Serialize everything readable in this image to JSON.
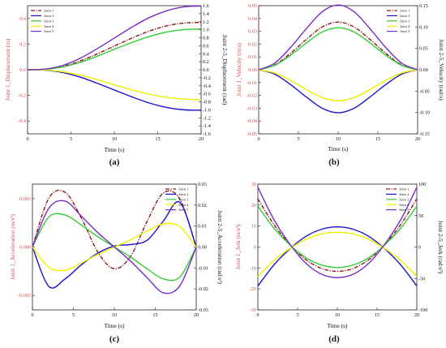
{
  "figure": {
    "panels": [
      {
        "caption": "(a)",
        "xlabel": "Time (s)",
        "ylabel_left": "Joint 1_Displacement (m)",
        "ylabel_right": "Joint 2-5_Displacement (rad)"
      },
      {
        "caption": "(b)",
        "xlabel": "Time (s)",
        "ylabel_left": "Joint 1_Velocity (m/s)",
        "ylabel_right": "Joint 2-5_Velocity (rad/s)"
      },
      {
        "caption": "(c)",
        "xlabel": "Time (s)",
        "ylabel_left": "Joint 1_Acceleration (m/s²)",
        "ylabel_right": "Joint 2-5_Acceleration (rad/s²)"
      },
      {
        "caption": "(d)",
        "xlabel": "Time (s)",
        "ylabel_left": "Joint 1_Jerk (m/s³)",
        "ylabel_right": "Joint 2-5_Jerk (rad/s³)"
      }
    ]
  },
  "chart_data": [
    {
      "type": "line",
      "x": [
        0,
        2,
        4,
        6,
        8,
        10,
        12,
        14,
        16,
        18,
        20
      ],
      "xlim": [
        0,
        20
      ],
      "xticks": [
        0,
        5,
        10,
        15,
        20
      ],
      "ylim_left": [
        -0.5,
        0.5
      ],
      "yticks_left": [
        -0.4,
        -0.2,
        0.0,
        0.2,
        0.4
      ],
      "ylim_right": [
        -1.6,
        1.6
      ],
      "yticks_right": [
        -1.6,
        -1.4,
        -1.2,
        -1.0,
        -0.8,
        -0.6,
        -0.4,
        -0.2,
        0.0,
        0.2,
        0.4,
        0.6,
        0.8,
        1.0,
        1.2,
        1.4,
        1.6
      ],
      "legend": "top-left",
      "series": [
        {
          "name": "Joint 1",
          "axis": "left",
          "color": "#8b1a1a",
          "dash": "dashdot",
          "values": [
            0,
            0.004,
            0.025,
            0.067,
            0.123,
            0.185,
            0.246,
            0.301,
            0.342,
            0.364,
            0.37
          ]
        },
        {
          "name": "Joint 2",
          "axis": "right",
          "color": "#1c14c8",
          "dash": "solid",
          "values": [
            0,
            -0.011,
            -0.066,
            -0.179,
            -0.334,
            -0.505,
            -0.675,
            -0.828,
            -0.94,
            -1.0,
            -1.01
          ]
        },
        {
          "name": "Joint 3",
          "axis": "left",
          "color": "#33cc33",
          "dash": "solid",
          "values": [
            0,
            0.003,
            0.021,
            0.057,
            0.105,
            0.16,
            0.212,
            0.259,
            0.294,
            0.313,
            0.318
          ]
        },
        {
          "name": "Joint 4",
          "axis": "left",
          "color": "#f0f000",
          "dash": "solid",
          "values": [
            0,
            -0.002,
            -0.015,
            -0.041,
            -0.077,
            -0.117,
            -0.156,
            -0.19,
            -0.215,
            -0.229,
            -0.234
          ]
        },
        {
          "name": "Joint 5",
          "axis": "right",
          "color": "#7a2cc6",
          "dash": "solid",
          "values": [
            0,
            0.017,
            0.104,
            0.28,
            0.523,
            0.791,
            1.06,
            1.3,
            1.47,
            1.57,
            1.59
          ]
        }
      ]
    },
    {
      "type": "line",
      "x": [
        0,
        2,
        4,
        6,
        8,
        10,
        12,
        14,
        16,
        18,
        20
      ],
      "xlim": [
        0,
        20
      ],
      "xticks": [
        0,
        5,
        10,
        15,
        20
      ],
      "ylim_left": [
        -0.05,
        0.05
      ],
      "yticks_left": [
        -0.05,
        -0.04,
        -0.03,
        -0.02,
        -0.01,
        0.0,
        0.01,
        0.02,
        0.03,
        0.04,
        0.05
      ],
      "ylim_right": [
        -0.15,
        0.15
      ],
      "yticks_right": [
        -0.15,
        -0.1,
        -0.05,
        0.0,
        0.05,
        0.1,
        0.15
      ],
      "legend": "top-right",
      "series": [
        {
          "name": "Joint 1",
          "axis": "left",
          "color": "#8b1a1a",
          "dash": "dashdot",
          "values": [
            0,
            0.0038,
            0.0128,
            0.0237,
            0.0334,
            0.0372,
            0.0334,
            0.0237,
            0.0128,
            0.0038,
            0
          ]
        },
        {
          "name": "Joint 2",
          "axis": "right",
          "color": "#1c14c8",
          "dash": "solid",
          "values": [
            0,
            -0.0102,
            -0.0345,
            -0.0638,
            -0.0901,
            -0.1005,
            -0.0901,
            -0.0638,
            -0.0345,
            -0.0102,
            0
          ]
        },
        {
          "name": "Joint 3",
          "axis": "left",
          "color": "#33cc33",
          "dash": "solid",
          "values": [
            0,
            0.0034,
            0.0113,
            0.0209,
            0.0295,
            0.0329,
            0.0295,
            0.0209,
            0.0113,
            0.0034,
            0
          ]
        },
        {
          "name": "Joint 4",
          "axis": "left",
          "color": "#f0f000",
          "dash": "solid",
          "values": [
            0,
            -0.0025,
            -0.0083,
            -0.0154,
            -0.0217,
            -0.0242,
            -0.0217,
            -0.0154,
            -0.0083,
            -0.0025,
            0
          ]
        },
        {
          "name": "Joint 5",
          "axis": "right",
          "color": "#7a2cc6",
          "dash": "solid",
          "values": [
            0,
            0.0154,
            0.052,
            0.0962,
            0.1358,
            0.1515,
            0.1358,
            0.0962,
            0.052,
            0.0154,
            0
          ]
        }
      ]
    },
    {
      "type": "line",
      "x": [
        0,
        2,
        4,
        6,
        8,
        10,
        12,
        14,
        16,
        18,
        20
      ],
      "xlim": [
        0,
        20
      ],
      "xticks": [
        0,
        5,
        10,
        15,
        20
      ],
      "ylim_left": [
        -0.0065,
        0.0065
      ],
      "yticks_left": [
        -0.005,
        0.0,
        0.005
      ],
      "ylim_right": [
        -0.03,
        0.03
      ],
      "yticks_right": [
        -0.03,
        -0.02,
        -0.01,
        0.0,
        0.01,
        0.02,
        0.03
      ],
      "legend": "top-right",
      "series": [
        {
          "name": "Joint 1",
          "axis": "left",
          "color": "#8b1a1a",
          "dash": "dashdot",
          "values": [
            0,
            0.00505,
            0.00565,
            0.00295,
            -0.00055,
            -0.00225,
            -0.00095,
            0.00265,
            0.0056,
            0.00495,
            0
          ]
        },
        {
          "name": "Joint 2",
          "axis": "right",
          "color": "#1c14c8",
          "dash": "solid",
          "values": [
            0,
            -0.0188,
            -0.0152,
            -0.0084,
            -0.0029,
            0.0005,
            0.0012,
            0.0032,
            0.0125,
            0.0213,
            0
          ]
        },
        {
          "name": "Joint 3",
          "axis": "left",
          "color": "#33cc33",
          "dash": "solid",
          "values": [
            0,
            0.0031,
            0.0033,
            0.00225,
            0.00105,
            0,
            -0.00105,
            -0.00225,
            -0.0033,
            -0.0031,
            0
          ]
        },
        {
          "name": "Joint 4",
          "axis": "left",
          "color": "#f0f000",
          "dash": "solid",
          "values": [
            0,
            -0.0021,
            -0.0024,
            -0.00165,
            -0.00075,
            0,
            0.00075,
            0.00165,
            0.0024,
            0.0021,
            0
          ]
        },
        {
          "name": "Joint 5",
          "axis": "right",
          "color": "#7a2cc6",
          "dash": "solid",
          "values": [
            0,
            0.0185,
            0.0219,
            0.0146,
            0.0068,
            0,
            -0.0068,
            -0.0146,
            -0.0219,
            -0.0185,
            0
          ]
        }
      ]
    },
    {
      "type": "line",
      "x": [
        0,
        2,
        4,
        6,
        8,
        10,
        12,
        14,
        16,
        18,
        20
      ],
      "xlim": [
        0,
        20
      ],
      "xticks": [
        0,
        5,
        10,
        15,
        20
      ],
      "ylim_left": [
        -30,
        30
      ],
      "yticks_left": [
        -30,
        -20,
        -10,
        0,
        10,
        20,
        30
      ],
      "ylim_right": [
        -100,
        100
      ],
      "yticks_right": [
        -100,
        -50,
        0,
        50,
        100
      ],
      "legend": "top-right",
      "series": [
        {
          "name": "Joint 1",
          "axis": "left",
          "color": "#8b1a1a",
          "dash": "dashdot",
          "values": [
            23,
            10.8,
            1.3,
            -5.9,
            -10.2,
            -11.6,
            -10.2,
            -5.9,
            1.3,
            10.8,
            23
          ]
        },
        {
          "name": "Joint 2",
          "axis": "right",
          "color": "#1c14c8",
          "dash": "solid",
          "values": [
            -62,
            -28.8,
            -3.2,
            16.5,
            28.2,
            32,
            28.2,
            16.5,
            -3.2,
            -28.8,
            -62
          ]
        },
        {
          "name": "Joint 3",
          "axis": "left",
          "color": "#33cc33",
          "dash": "solid",
          "values": [
            19.5,
            9.1,
            1.1,
            -5.0,
            -8.6,
            -9.8,
            -8.6,
            -5.0,
            1.1,
            9.1,
            19.5
          ]
        },
        {
          "name": "Joint 4",
          "axis": "left",
          "color": "#f0f000",
          "dash": "solid",
          "values": [
            -14,
            -6.5,
            -0.8,
            3.6,
            6.2,
            7.0,
            6.2,
            3.6,
            -0.8,
            -6.5,
            -14
          ]
        },
        {
          "name": "Joint 5",
          "axis": "right",
          "color": "#7a2cc6",
          "dash": "solid",
          "values": [
            95,
            44,
            5,
            -25.3,
            -43.2,
            -48.7,
            -43.2,
            -25.3,
            5,
            44,
            95
          ]
        }
      ]
    }
  ]
}
